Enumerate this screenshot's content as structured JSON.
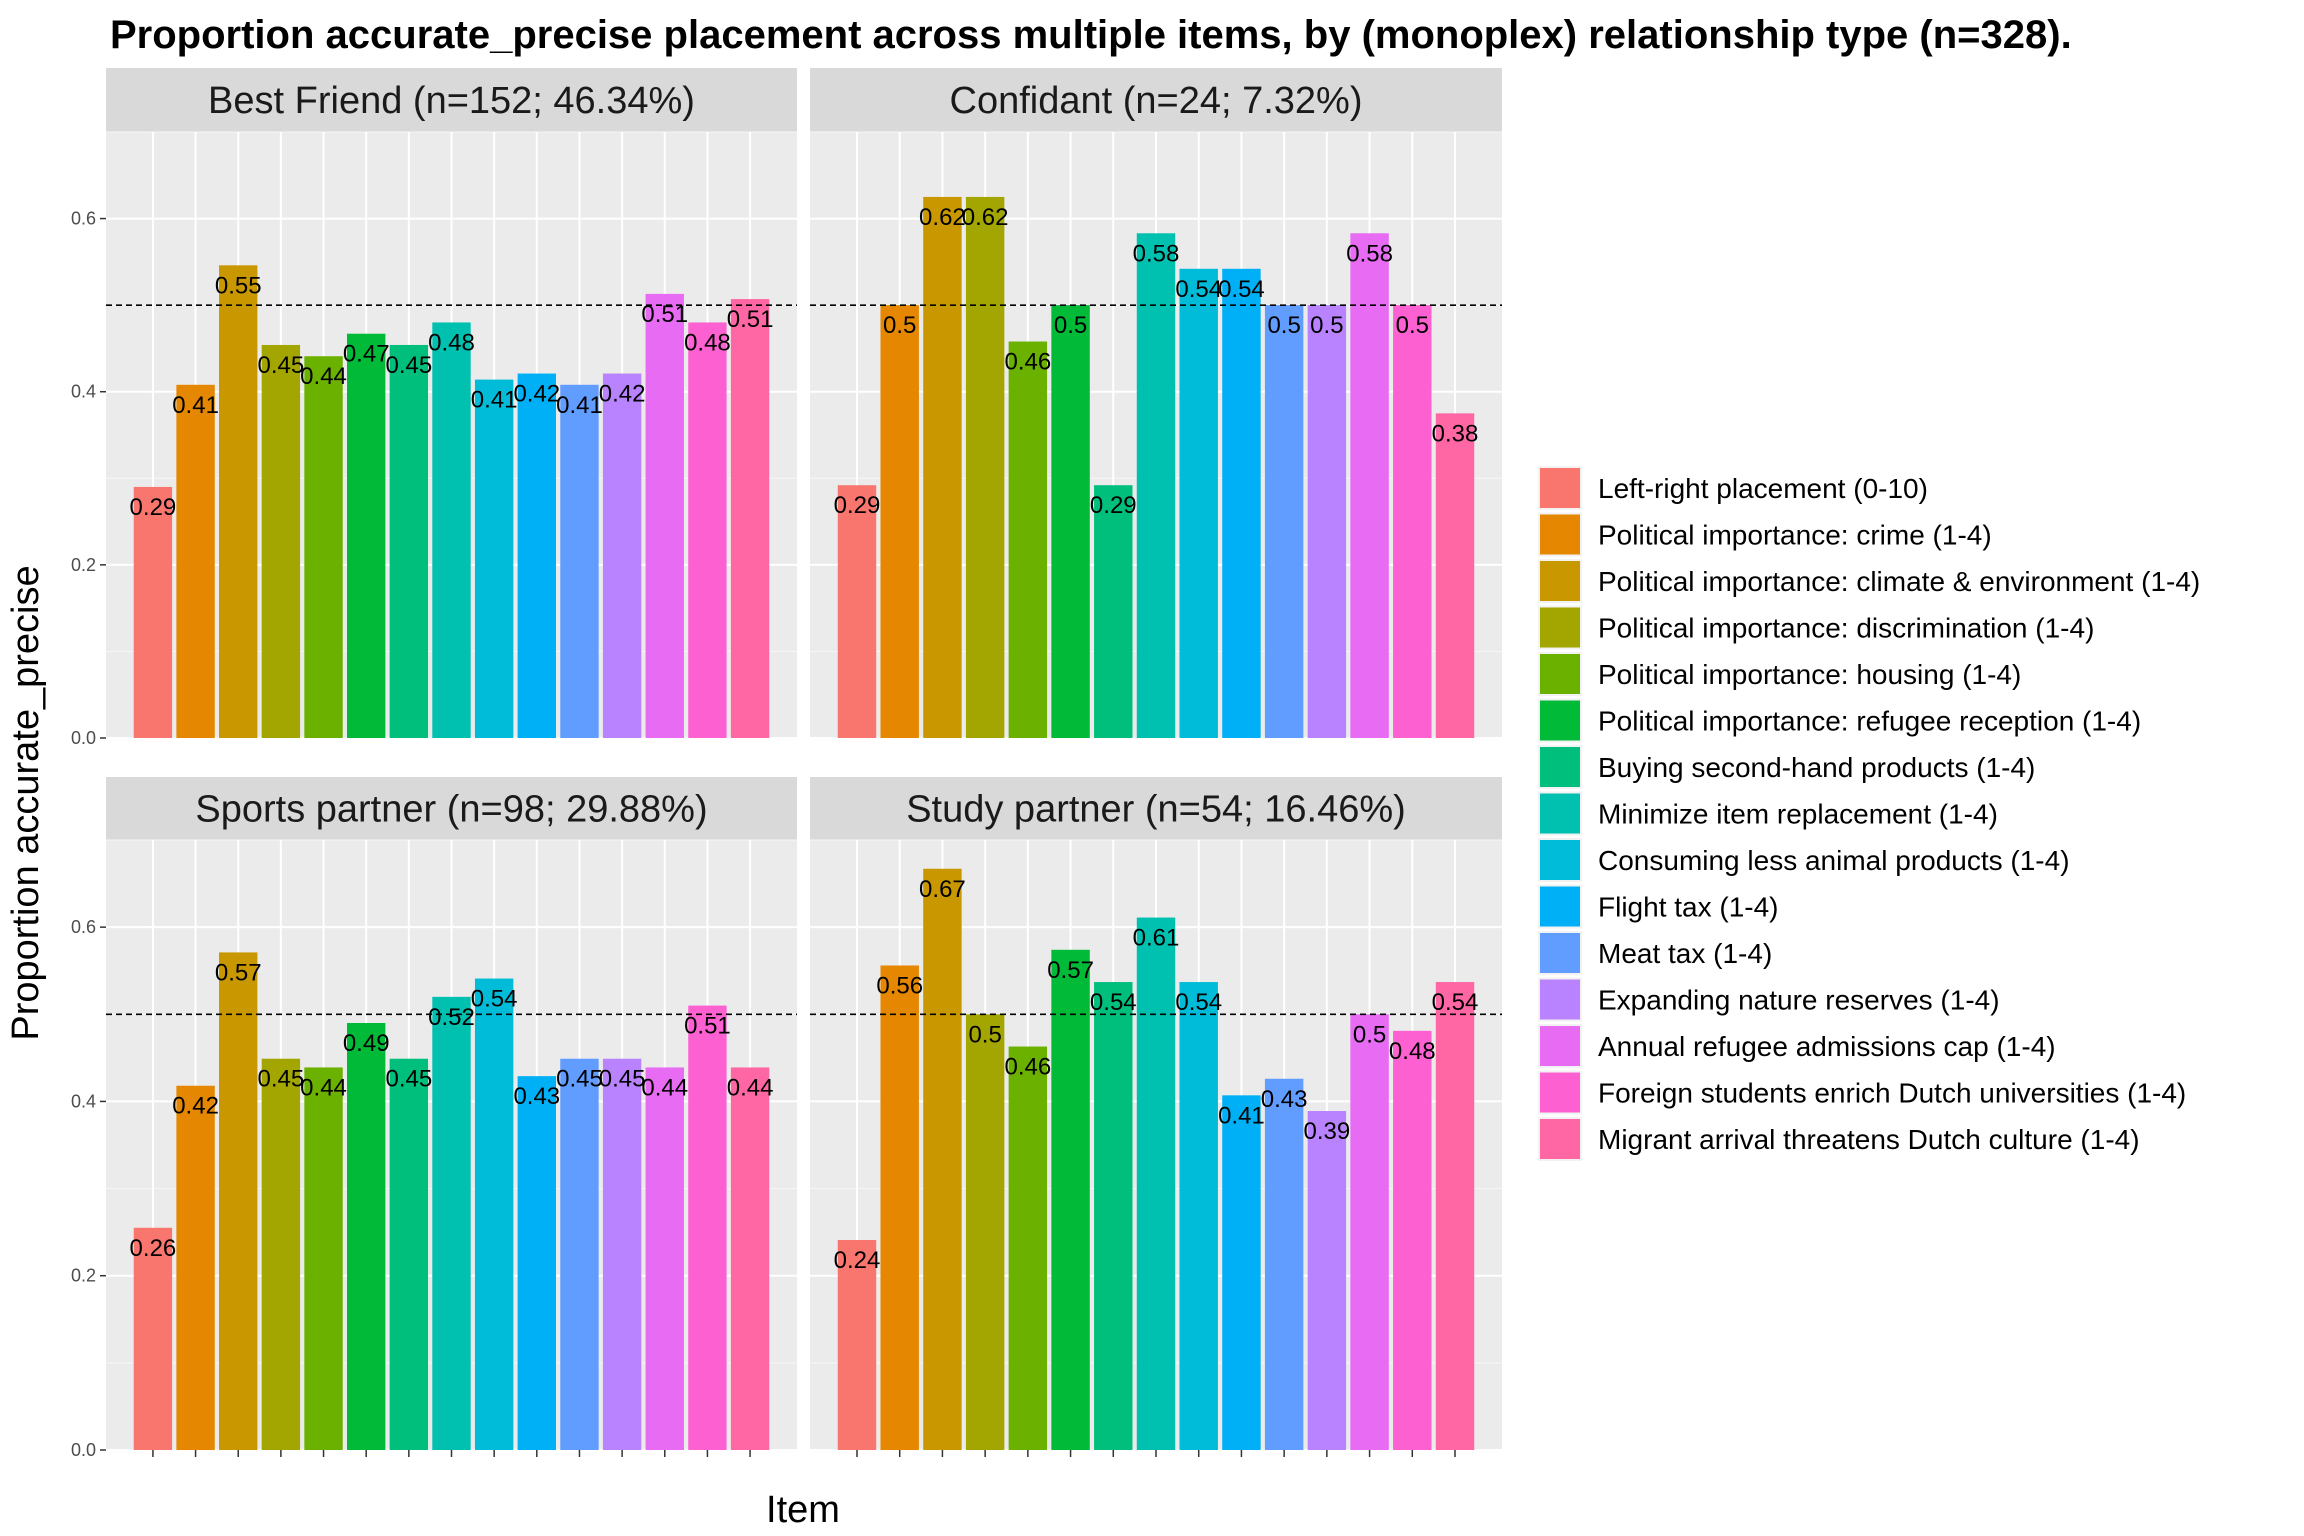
{
  "chart_data": {
    "type": "bar",
    "title": "Proportion accurate_precise placement across multiple items, by (monoplex) relationship type (n=328).",
    "xlabel": "Item",
    "ylabel": "Proportion accurate_precise",
    "ylim": [
      0,
      0.7
    ],
    "y_ticks": [
      "0.0",
      "0.2",
      "0.4",
      "0.6"
    ],
    "reference_line": 0.5,
    "grid": true,
    "legend_position": "right",
    "categories": [
      "Left-right placement (0-10)",
      "Political importance: crime (1-4)",
      "Political importance: climate & environment (1-4)",
      "Political importance: discrimination (1-4)",
      "Political importance: housing (1-4)",
      "Political importance: refugee reception (1-4)",
      "Buying second-hand products (1-4)",
      "Minimize item replacement (1-4)",
      "Consuming less animal products (1-4)",
      "Flight tax (1-4)",
      "Meat tax (1-4)",
      "Expanding nature reserves (1-4)",
      "Annual refugee admissions cap (1-4)",
      "Foreign students enrich Dutch universities (1-4)",
      "Migrant arrival threatens Dutch culture (1-4)"
    ],
    "colors": [
      "#F8766D",
      "#E58700",
      "#C99800",
      "#A3A500",
      "#6BB100",
      "#00BA38",
      "#00BF7D",
      "#00C0AF",
      "#00BCD8",
      "#00B0F6",
      "#619CFF",
      "#B983FF",
      "#E76BF3",
      "#FD61D1",
      "#FF67A4"
    ],
    "panels": [
      {
        "name": "Best Friend (n=152; 46.34%)",
        "values": [
          0.29,
          0.408,
          0.546,
          0.454,
          0.441,
          0.467,
          0.454,
          0.48,
          0.414,
          0.421,
          0.408,
          0.421,
          0.513,
          0.48,
          0.507
        ],
        "labels": [
          "0.29",
          "0.41",
          "0.55",
          "0.45",
          "0.44",
          "0.47",
          "0.45",
          "0.48",
          "0.41",
          "0.42",
          "0.41",
          "0.42",
          "0.51",
          "0.48",
          "0.51"
        ]
      },
      {
        "name": "Confidant (n=24; 7.32%)",
        "values": [
          0.292,
          0.5,
          0.625,
          0.625,
          0.458,
          0.5,
          0.292,
          0.583,
          0.542,
          0.542,
          0.5,
          0.5,
          0.583,
          0.5,
          0.375
        ],
        "labels": [
          "0.29",
          "0.5",
          "0.62",
          "0.62",
          "0.46",
          "0.5",
          "0.29",
          "0.58",
          "0.54",
          "0.54",
          "0.5",
          "0.5",
          "0.58",
          "0.5",
          "0.38"
        ]
      },
      {
        "name": "Sports partner (n=98; 29.88%)",
        "values": [
          0.255,
          0.418,
          0.571,
          0.449,
          0.439,
          0.49,
          0.449,
          0.52,
          0.541,
          0.429,
          0.449,
          0.449,
          0.439,
          0.51,
          0.439
        ],
        "labels": [
          "0.26",
          "0.42",
          "0.57",
          "0.45",
          "0.44",
          "0.49",
          "0.45",
          "0.52",
          "0.54",
          "0.43",
          "0.45",
          "0.45",
          "0.44",
          "0.51",
          "0.44"
        ]
      },
      {
        "name": "Study partner (n=54; 16.46%)",
        "values": [
          0.241,
          0.556,
          0.667,
          0.5,
          0.463,
          0.574,
          0.537,
          0.611,
          0.537,
          0.407,
          0.426,
          0.389,
          0.5,
          0.481,
          0.537
        ],
        "labels": [
          "0.24",
          "0.56",
          "0.67",
          "0.5",
          "0.46",
          "0.57",
          "0.54",
          "0.61",
          "0.54",
          "0.41",
          "0.43",
          "0.39",
          "0.5",
          "0.48",
          "0.54"
        ]
      }
    ]
  }
}
